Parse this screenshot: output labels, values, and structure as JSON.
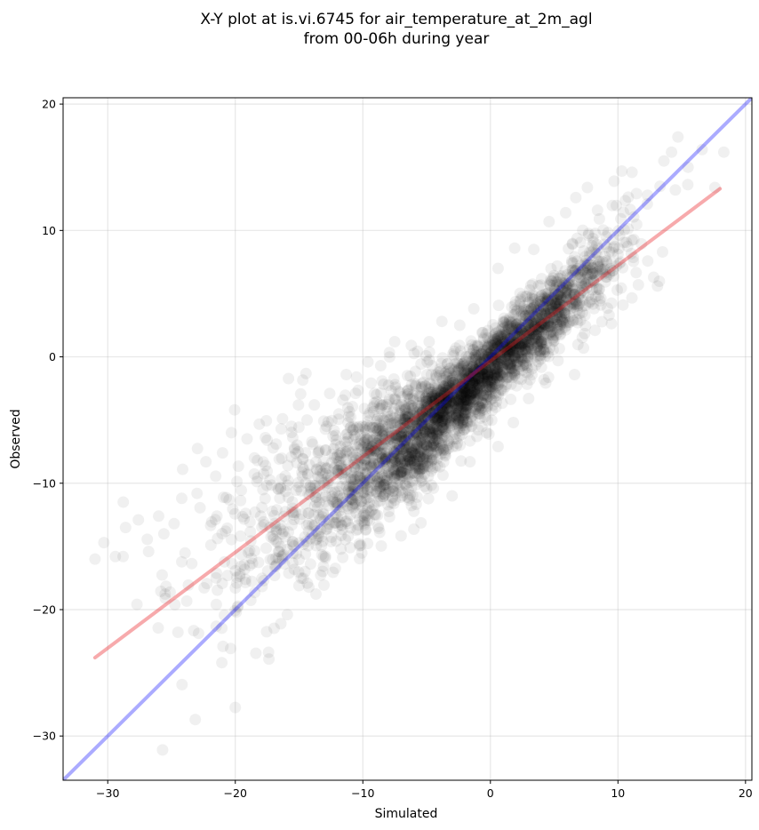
{
  "chart_data": {
    "type": "scatter",
    "title_line1": "X-Y plot at is.vi.6745 for air_temperature_at_2m_agl",
    "title_line2": "from 00-06h during year",
    "xlabel": "Simulated",
    "ylabel": "Observed",
    "xlim": [
      -33.5,
      20.5
    ],
    "ylim": [
      -33.5,
      20.5
    ],
    "xticks": [
      -30,
      -20,
      -10,
      0,
      10,
      20
    ],
    "yticks": [
      -30,
      -20,
      -10,
      0,
      10,
      20
    ],
    "xtick_labels": [
      "−30",
      "−20",
      "−10",
      "0",
      "10",
      "20"
    ],
    "ytick_labels": [
      "−30",
      "−20",
      "−10",
      "0",
      "10",
      "20"
    ],
    "grid": true,
    "identity_line": {
      "from": [
        -33.5,
        -33.5
      ],
      "to": [
        20.5,
        20.5
      ],
      "color": "#0000ff",
      "alpha": 0.33
    },
    "fit_line": {
      "from": [
        -31,
        -23.8
      ],
      "to": [
        18,
        13.3
      ],
      "color": "#e8181d",
      "alpha": 0.37
    },
    "point_color": "#000000",
    "point_alpha": 0.06,
    "samples": [
      {
        "x": -31.0,
        "y": -16.0
      },
      {
        "x": -30.3,
        "y": -14.7
      },
      {
        "x": -29.4,
        "y": -15.8
      },
      {
        "x": -28.8,
        "y": -15.8
      },
      {
        "x": -28.6,
        "y": -13.5
      },
      {
        "x": -27.6,
        "y": -12.9
      },
      {
        "x": -26.8,
        "y": -15.4
      },
      {
        "x": -25.6,
        "y": -14.0
      },
      {
        "x": -24.8,
        "y": -13.2
      },
      {
        "x": -24.2,
        "y": -11.2
      },
      {
        "x": -23.0,
        "y": -10.8
      },
      {
        "x": -22.3,
        "y": -8.3
      },
      {
        "x": -21.0,
        "y": -7.6
      },
      {
        "x": -20.3,
        "y": -6.0
      },
      {
        "x": -21.5,
        "y": -17.5
      },
      {
        "x": -20.6,
        "y": -17.3
      },
      {
        "x": -19.2,
        "y": -17.6
      },
      {
        "x": -18.5,
        "y": -8.0
      },
      {
        "x": -17.5,
        "y": -6.6
      },
      {
        "x": -16.8,
        "y": -6.9
      },
      {
        "x": -16.3,
        "y": -4.9
      },
      {
        "x": -16.3,
        "y": -16.0
      },
      {
        "x": -15.5,
        "y": -16.3
      },
      {
        "x": -14.5,
        "y": -15.6
      },
      {
        "x": -13.6,
        "y": -14.4
      },
      {
        "x": -12.8,
        "y": -13.6
      },
      {
        "x": -11.7,
        "y": -13.3
      },
      {
        "x": -13.8,
        "y": -3.8
      },
      {
        "x": -12.6,
        "y": -2.9
      },
      {
        "x": -11.3,
        "y": -1.4
      },
      {
        "x": -10.5,
        "y": -1.6
      },
      {
        "x": -9.6,
        "y": -0.4
      },
      {
        "x": -8.6,
        "y": -0.7
      },
      {
        "x": -7.5,
        "y": 1.2
      },
      {
        "x": -6.2,
        "y": 0.9
      },
      {
        "x": -4.8,
        "y": 1.2
      },
      {
        "x": -3.8,
        "y": 2.8
      },
      {
        "x": -2.4,
        "y": 2.5
      },
      {
        "x": -1.3,
        "y": 3.8
      },
      {
        "x": -3.0,
        "y": -11.0
      },
      {
        "x": -1.6,
        "y": -8.3
      },
      {
        "x": -0.3,
        "y": -6.0
      },
      {
        "x": 0.6,
        "y": -7.1
      },
      {
        "x": 1.8,
        "y": -5.2
      },
      {
        "x": 3.0,
        "y": -3.3
      },
      {
        "x": 4.2,
        "y": -1.8
      },
      {
        "x": 5.3,
        "y": -0.3
      },
      {
        "x": 6.6,
        "y": -1.4
      },
      {
        "x": 7.3,
        "y": 0.7
      },
      {
        "x": 8.2,
        "y": 2.1
      },
      {
        "x": 9.3,
        "y": 3.3
      },
      {
        "x": 10.4,
        "y": 4.1
      },
      {
        "x": 11.6,
        "y": 5.7
      },
      {
        "x": 12.8,
        "y": 6.3
      },
      {
        "x": 13.1,
        "y": 5.6
      },
      {
        "x": 13.5,
        "y": 8.3
      },
      {
        "x": 0.6,
        "y": 7.0
      },
      {
        "x": 1.9,
        "y": 8.6
      },
      {
        "x": 3.4,
        "y": 8.5
      },
      {
        "x": 4.6,
        "y": 10.7
      },
      {
        "x": 5.9,
        "y": 11.4
      },
      {
        "x": 6.7,
        "y": 12.6
      },
      {
        "x": 7.6,
        "y": 13.4
      },
      {
        "x": 8.4,
        "y": 11.6
      },
      {
        "x": 9.7,
        "y": 13.9
      },
      {
        "x": 10.3,
        "y": 14.7
      },
      {
        "x": 11.1,
        "y": 14.6
      },
      {
        "x": 12.3,
        "y": 12.1
      },
      {
        "x": 13.3,
        "y": 13.5
      },
      {
        "x": 13.6,
        "y": 15.5
      },
      {
        "x": 14.2,
        "y": 16.2
      },
      {
        "x": 14.7,
        "y": 17.4
      },
      {
        "x": 15.5,
        "y": 15.0
      },
      {
        "x": 16.6,
        "y": 16.4
      },
      {
        "x": 17.6,
        "y": 13.4
      },
      {
        "x": 18.3,
        "y": 16.2
      },
      {
        "x": 14.5,
        "y": 13.2
      }
    ]
  }
}
